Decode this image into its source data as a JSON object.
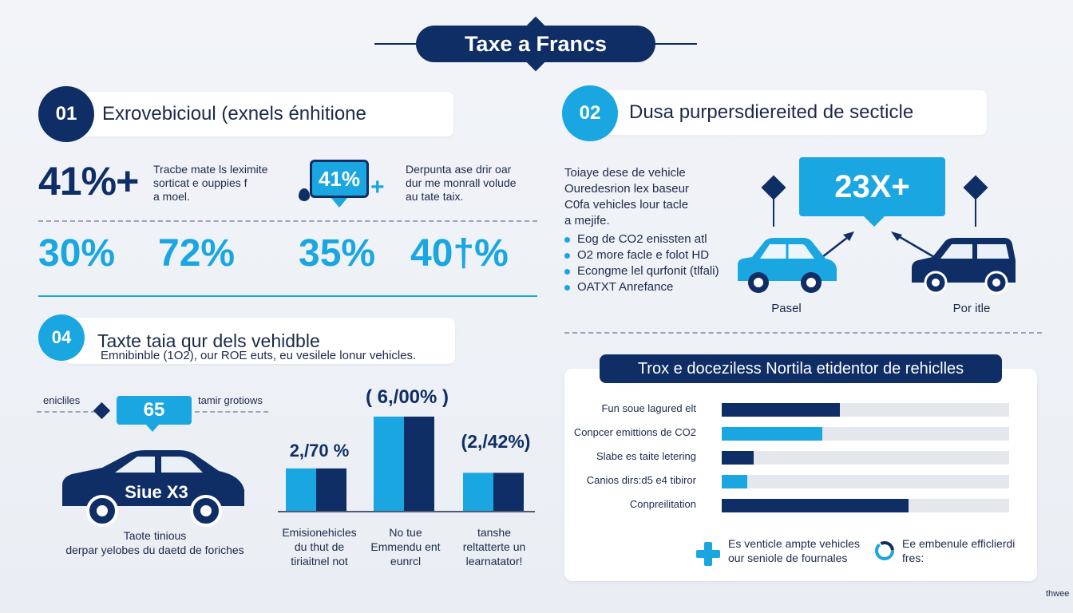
{
  "title": "Taxe a Francs",
  "colors": {
    "navy": "#102e66",
    "cyan": "#1aa6e0",
    "track": "#e4e7ec"
  },
  "section1": {
    "number": "01",
    "heading": "Exrovebicioul (exnels énhitione",
    "stat_a": "41%+",
    "text_a": [
      "Tracbe mate ls leximite",
      "sorticat e ouppies f",
      "a moel."
    ],
    "bubble_stat": "41%",
    "bubble_plus": "+",
    "text_b": [
      "Derpunta ase drir oar",
      "dur me monrall volude",
      "au tate taix."
    ],
    "percents": [
      "30%",
      "72%",
      "35%",
      "40†%"
    ]
  },
  "section2": {
    "number": "02",
    "heading": "Dusa purpersdiereited de secticle",
    "intro": [
      "Toiaye dese de vehicle",
      "Ouredesrion lex baseur",
      "C0fa vehicles lour tacle",
      "a mejife."
    ],
    "bullets": [
      "Eog de CO2 enissten atl",
      "O2 more facle e folot HD",
      "Econgme lel qurfonit (tlfali)",
      "OATXT Anrefance"
    ],
    "bubble": "23X+",
    "car_left_label": "Pasel",
    "car_right_label": "Por itle"
  },
  "section4": {
    "number": "04",
    "heading": "Taxte taia qur dels vehidble",
    "subheading": "Emnibinble (1O2), our ROE euts, eu vesilele lonur vehicles.",
    "tag_left": "enicliles",
    "tag_bubble": "65",
    "tag_right": "tamir grotiows",
    "car_plate": "Siue X3",
    "car_caption": [
      "Taote tinious",
      "derpar yelobes du daetd de foriches"
    ],
    "bar_values": [
      "2,/70 %",
      "( 6,/00% )",
      "(2,/42%)"
    ],
    "bar_labels": [
      [
        "Emisionehicles",
        "du thut de",
        "tiriaitnel not"
      ],
      [
        "No tue",
        "Emmendu ent",
        "eunrcl"
      ],
      [
        "tanshe",
        "reltatterte un",
        "learnatator!"
      ]
    ]
  },
  "chart_data": [
    {
      "type": "bar",
      "categories": [
        "Emisionehicles du thut de tiriaitnel not",
        "No tue Emmendu ent eunrcl",
        "tanshe reltatterte un learnatator!"
      ],
      "series": [
        {
          "values": [
            2.7,
            6.0,
            2.42
          ]
        },
        {
          "values": [
            2.7,
            6.0,
            2.42
          ]
        }
      ],
      "data_labels": [
        "2,/70 %",
        "( 6,/00% )",
        "(2,/42%)"
      ],
      "ylim": [
        0,
        6.2
      ]
    },
    {
      "type": "bar",
      "orientation": "horizontal",
      "title": "Trox e doceziless Nortila etidentor de rehiclles",
      "categories": [
        "Fun soue lagured elt",
        "Conpcer emittions de CO2",
        "Slabe es taite letering",
        "Canios dirs:d5 e4 tibiror",
        "Conpreilitation"
      ],
      "values": [
        41,
        35,
        11,
        9,
        65
      ],
      "colors": [
        "#102e66",
        "#1aa6e0",
        "#102e66",
        "#1aa6e0",
        "#102e66"
      ],
      "xlim": [
        0,
        100
      ]
    }
  ],
  "panel": {
    "title": "Trox e doceziless Nortila etidentor de rehiclles",
    "legend_a": [
      "Es venticle ampte vehicles",
      "our seniole de fournales"
    ],
    "legend_b": [
      "Ee embenule efficlierdi",
      "fres:"
    ]
  },
  "watermark": "thwee"
}
